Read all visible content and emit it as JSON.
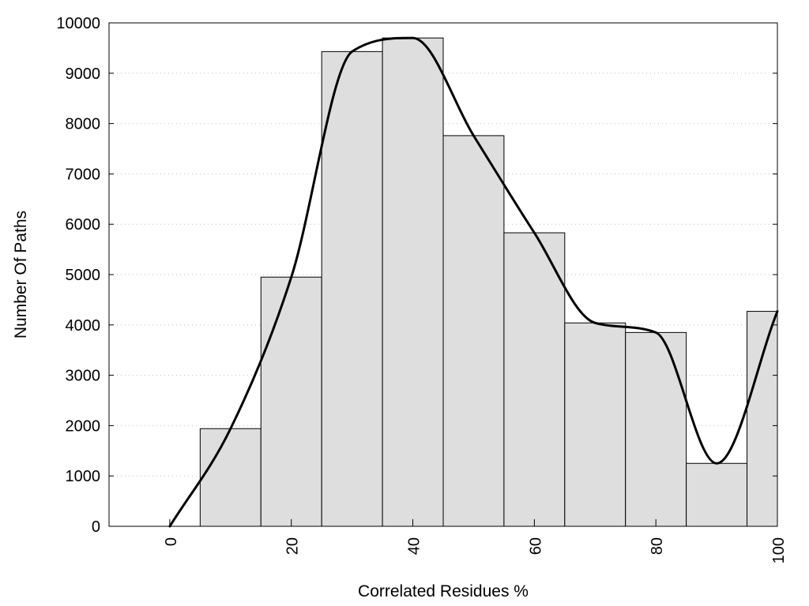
{
  "chart_data": {
    "type": "bar",
    "xlabel": "Correlated Residues %",
    "ylabel": "Number Of Paths",
    "xlim": [
      -10,
      100
    ],
    "ylim": [
      0,
      10000
    ],
    "x_ticks": [
      "0",
      "20",
      "40",
      "60",
      "80",
      "100"
    ],
    "y_ticks": [
      "0",
      "1000",
      "2000",
      "3000",
      "4000",
      "5000",
      "6000",
      "7000",
      "8000",
      "9000",
      "10000"
    ],
    "bar_width": 10,
    "grid": "horizontal dotted",
    "bars": {
      "x": [
        10,
        20,
        30,
        40,
        50,
        60,
        70,
        80,
        90,
        100
      ],
      "values": [
        1940,
        4950,
        9430,
        9700,
        7760,
        5830,
        4040,
        3850,
        1250,
        4270
      ]
    },
    "curve": {
      "x": [
        0,
        10,
        20,
        30,
        40,
        50,
        60,
        70,
        80,
        90,
        100
      ],
      "y": [
        0,
        1940,
        4950,
        9430,
        9700,
        7760,
        5830,
        4040,
        3850,
        1250,
        4270
      ]
    },
    "colors": {
      "bar_fill": "#dedede",
      "bar_edge": "#000000",
      "curve": "#000000"
    }
  }
}
